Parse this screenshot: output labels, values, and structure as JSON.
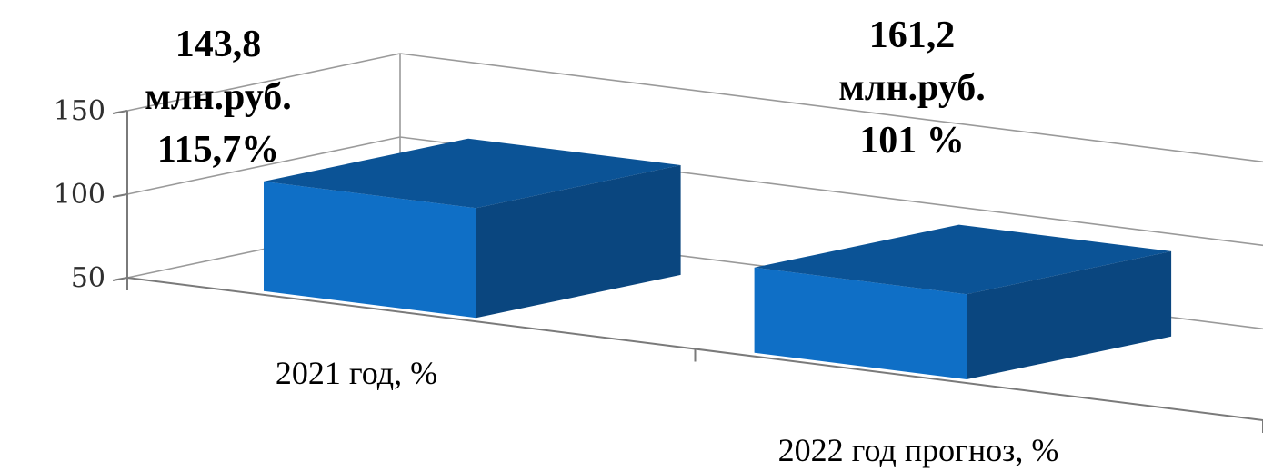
{
  "chart_data": {
    "type": "bar",
    "categories": [
      "2021 год, %",
      "2022 год прогноз, %"
    ],
    "values": [
      115.7,
      101
    ],
    "data_labels": [
      [
        "143,8",
        "млн.руб.",
        "115,7%"
      ],
      [
        "161,2",
        "млн.руб.",
        "101 %"
      ]
    ],
    "y_ticks": [
      "50",
      "100",
      "150"
    ],
    "ylim": [
      50,
      150
    ],
    "grid": true,
    "style": "3d-column",
    "colors": {
      "front": "#0f6fc6",
      "top": "#0b5396",
      "side": "#0a467f"
    }
  }
}
